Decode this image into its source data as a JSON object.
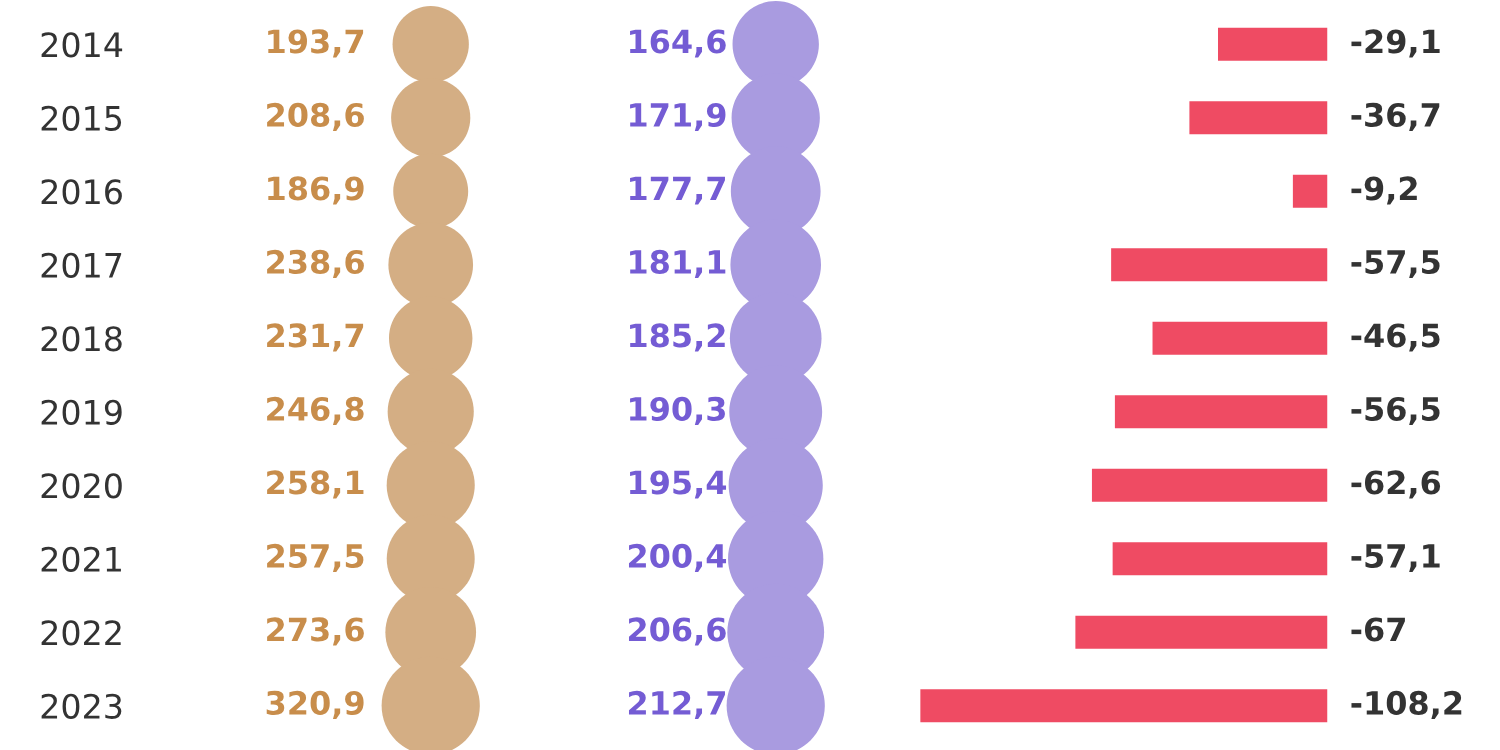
{
  "chart_data": [
    {
      "type": "other",
      "color": "#d4ae84",
      "values": [
        193.7,
        208.6,
        186.9,
        238.6,
        231.7,
        246.8,
        258.1,
        257.5,
        273.6,
        320.9
      ],
      "value_labels": [
        "193,7",
        "208,6",
        "186,9",
        "238,6",
        "231,7",
        "246,8",
        "258,1",
        "257,5",
        "273,6",
        "320,9"
      ]
    },
    {
      "type": "other",
      "color": "#a99be0",
      "values": [
        164.6,
        171.9,
        177.7,
        181.1,
        185.2,
        190.3,
        195.4,
        200.4,
        206.6,
        212.7
      ],
      "value_labels": [
        "164,6",
        "171,9",
        "177,7",
        "181,1",
        "185,2",
        "190,3",
        "195,4",
        "200,4",
        "206,6",
        "212,7"
      ]
    },
    {
      "type": "bar",
      "orientation": "horizontal",
      "categories": [
        "2014",
        "2015",
        "2016",
        "2017",
        "2018",
        "2019",
        "2020",
        "2021",
        "2022",
        "2023"
      ],
      "tick_labels": "y",
      "color": "#ef4b63",
      "values": [
        -29.1,
        -36.7,
        -9.2,
        -57.5,
        -46.5,
        -56.5,
        -62.6,
        -57.1,
        -67,
        -108.2
      ],
      "value_labels": [
        "-29,1",
        "-36,7",
        "-9,2",
        "-57,5",
        "-46,5",
        "-56,5",
        "-62,6",
        "-57,1",
        "-67",
        "-108,2"
      ]
    }
  ]
}
